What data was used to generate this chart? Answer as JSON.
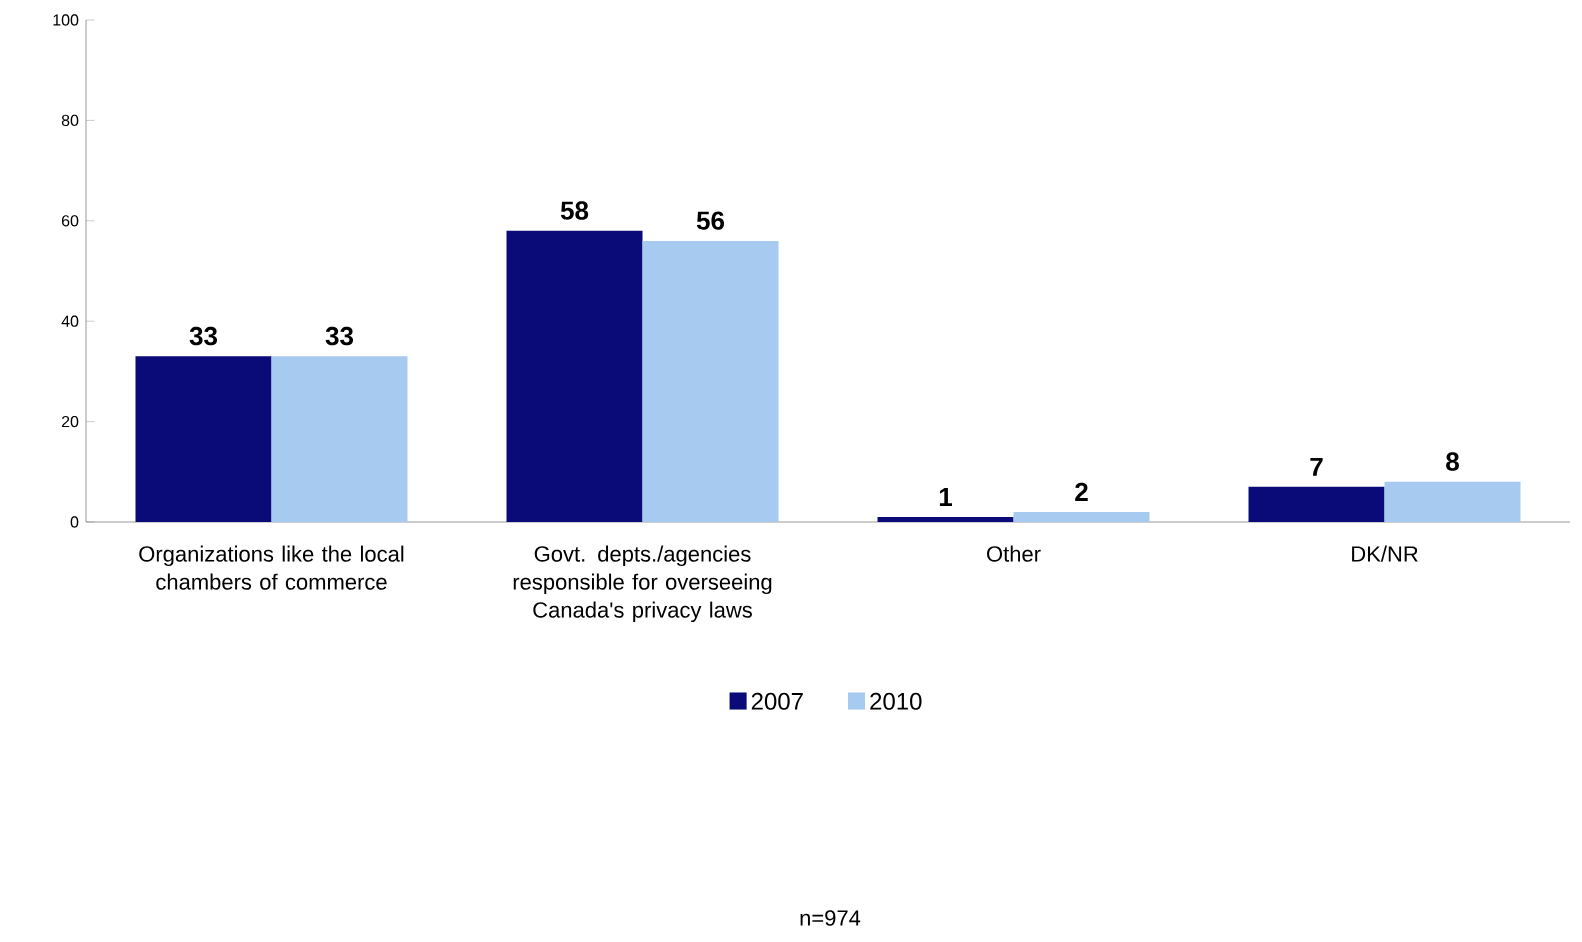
{
  "chart_data": {
    "type": "bar",
    "categories": [
      "Organizations like the local chambers of commerce",
      "Govt. depts./agencies responsible for overseeing Canada's privacy laws",
      "Other",
      "DK/NR"
    ],
    "series": [
      {
        "name": "2007",
        "color": "#0a0a78",
        "values": [
          33,
          58,
          1,
          7
        ]
      },
      {
        "name": "2010",
        "color": "#a6caf0",
        "values": [
          33,
          56,
          2,
          8
        ]
      }
    ],
    "ylim": [
      0,
      100
    ],
    "yticks": [
      0,
      20,
      40,
      60,
      80,
      100
    ],
    "data_labels": true,
    "legend": "bottom",
    "grid": false,
    "annotations": [
      "n=974"
    ]
  }
}
